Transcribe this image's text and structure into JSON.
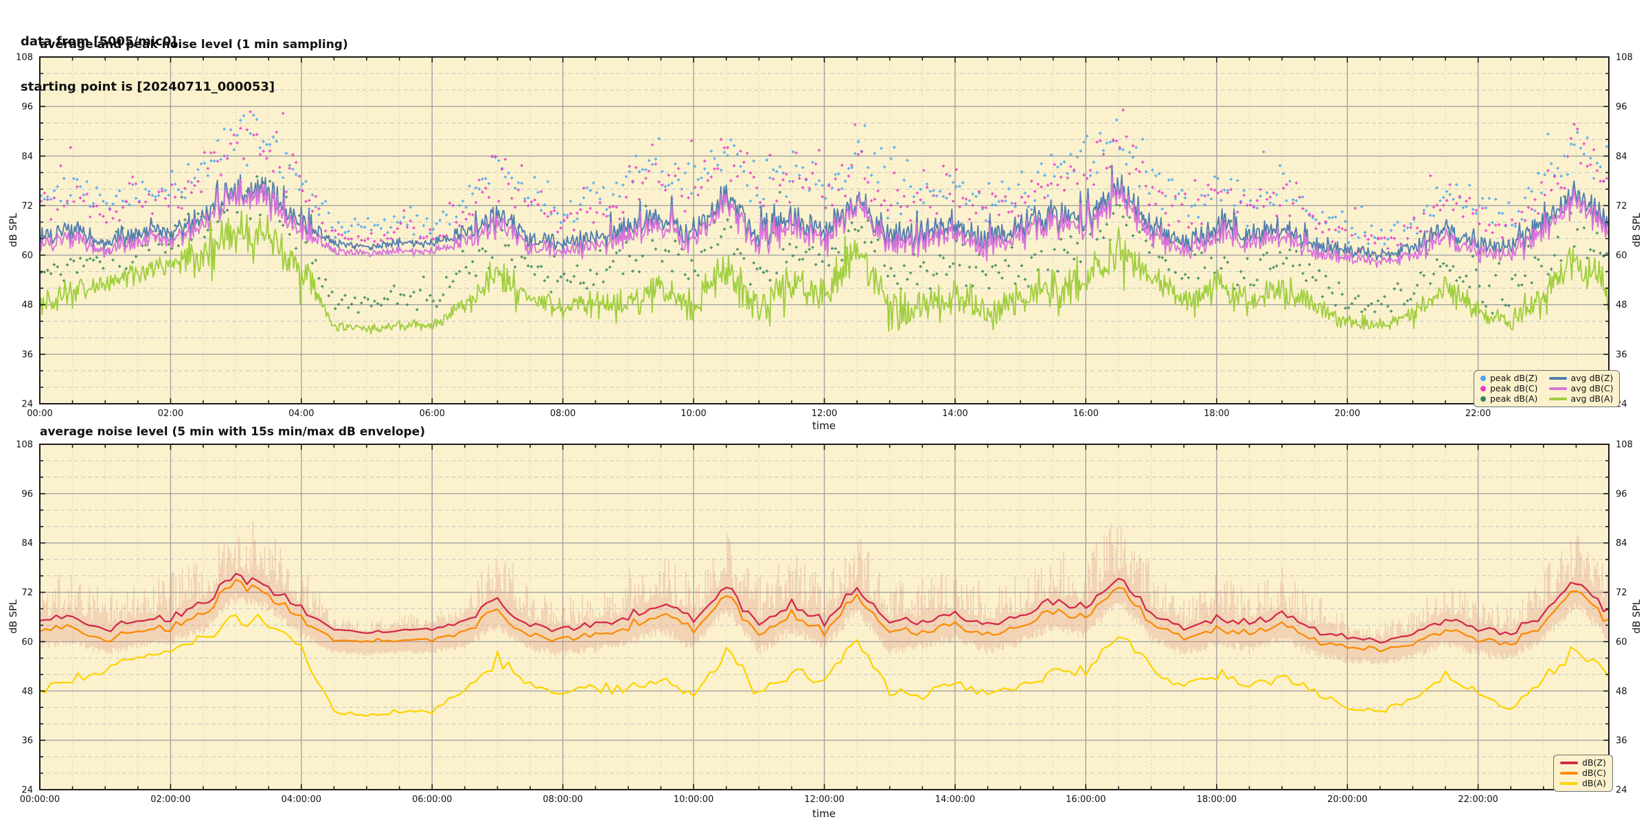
{
  "header": {
    "line1": "data from [5005/mic0]",
    "line2": "starting point is [20240711_000053]"
  },
  "figure": {
    "background": "#ffffff",
    "plot_background": "#fbf2cd",
    "grid_major_color": "#a3a3a3",
    "grid_minor_color": "#c7c7c7",
    "border_color": "#1a1a1a",
    "envelope_color": "#dd8474"
  },
  "chart_data": [
    {
      "type": "line+scatter",
      "title": "average and peak noise level (1 min sampling)",
      "xlabel": "time",
      "ylabel_left": "dB SPL",
      "ylabel_right": "dB SPL",
      "xlim_hours": [
        0,
        24
      ],
      "ylim": [
        24,
        108
      ],
      "x_tick_labels": [
        "00:00",
        "02:00",
        "04:00",
        "06:00",
        "08:00",
        "10:00",
        "12:00",
        "14:00",
        "16:00",
        "18:00",
        "20:00",
        "22:00"
      ],
      "y_tick_labels": [
        24,
        36,
        48,
        60,
        72,
        84,
        96,
        108
      ],
      "y_major_step": 12,
      "y_minor_step": 4,
      "x_major_step_hours": 2,
      "x_minor_step_hours": 0.5,
      "anchor_step_hours": 0.5,
      "activity": [
        0.55,
        0.5,
        0.4,
        0.45,
        0.5,
        0.7,
        0.9,
        0.9,
        0.75,
        0.12,
        0.08,
        0.15,
        0.12,
        0.45,
        0.8,
        0.5,
        0.4,
        0.5,
        0.7,
        0.9,
        0.8,
        0.9,
        0.85,
        0.9,
        0.8,
        0.8,
        0.75,
        0.8,
        0.7,
        0.7,
        0.7,
        0.85,
        0.8,
        0.95,
        0.7,
        0.5,
        0.75,
        0.6,
        0.7,
        0.5,
        0.3,
        0.2,
        0.4,
        0.65,
        0.5,
        0.4,
        0.7,
        0.9,
        0.7
      ],
      "series": [
        {
          "name": "avg dB(Z)",
          "type": "line",
          "color": "#527fae",
          "values": [
            65,
            66,
            63,
            65,
            66,
            69,
            76,
            74,
            68,
            63,
            62,
            63,
            63,
            65,
            70,
            64,
            63,
            64,
            66,
            69,
            65,
            74,
            64,
            69,
            65,
            73,
            64,
            65,
            67,
            64,
            66,
            70,
            68,
            76,
            67,
            63,
            66,
            64,
            67,
            63,
            61,
            60,
            62,
            66,
            63,
            62,
            67,
            75,
            67
          ]
        },
        {
          "name": "avg dB(C)",
          "type": "line",
          "color": "#d973d9",
          "values": [
            63,
            64,
            61,
            63,
            64,
            67,
            75,
            72.5,
            66,
            61,
            60.5,
            61,
            61,
            63,
            68,
            62,
            61,
            62,
            64,
            67,
            63,
            72.5,
            62,
            67,
            63,
            72,
            62,
            63,
            65,
            62,
            64,
            68,
            66,
            74.5,
            65,
            61,
            64,
            62,
            65,
            61,
            59,
            58.5,
            60,
            64,
            61,
            60,
            65,
            73.5,
            65
          ]
        },
        {
          "name": "avg dB(A)",
          "type": "line",
          "color": "#a0ce3e",
          "values": [
            48,
            51,
            53,
            56,
            58,
            61,
            66,
            64,
            58,
            43,
            42,
            43,
            43,
            48,
            56,
            50,
            47,
            49,
            48,
            52,
            47,
            57,
            47,
            53,
            50,
            61,
            48,
            47,
            50,
            47,
            49,
            53,
            53,
            62,
            54,
            49,
            52,
            49,
            52,
            48,
            44,
            43,
            46,
            52,
            47,
            44,
            51,
            58,
            52
          ]
        },
        {
          "name": "peak dB(Z)",
          "type": "scatter",
          "color": "#45a5f2",
          "values": [
            74,
            77,
            72,
            74,
            76,
            81,
            89,
            87,
            79,
            67,
            66,
            68,
            67,
            72,
            81,
            74,
            70,
            72,
            77,
            82,
            75,
            86,
            75,
            81,
            75,
            85,
            74,
            75,
            76,
            73,
            75,
            80,
            81,
            90,
            78,
            71,
            76,
            72,
            76,
            71,
            66,
            64,
            68,
            75,
            71,
            68,
            77,
            87,
            78
          ]
        },
        {
          "name": "peak dB(C)",
          "type": "scatter",
          "color": "#e838cb",
          "values": [
            72,
            75,
            70,
            72,
            74,
            79,
            87,
            85,
            77,
            65,
            64,
            66,
            65,
            70,
            79,
            72,
            68,
            70,
            75,
            80,
            73,
            84,
            73,
            79,
            73,
            83,
            72,
            73,
            74,
            71,
            73,
            78,
            79,
            88,
            76,
            69,
            74,
            70,
            74,
            69,
            64,
            62,
            66,
            73,
            69,
            66,
            75,
            85,
            76
          ]
        },
        {
          "name": "peak dB(A)",
          "type": "scatter",
          "color": "#35855c",
          "values": [
            56,
            59,
            59,
            62,
            64,
            68,
            74,
            72,
            64,
            49,
            48,
            50,
            49,
            55,
            64,
            57,
            54,
            56,
            58,
            62,
            56,
            67,
            56,
            61,
            57,
            69,
            56,
            55,
            59,
            55,
            57,
            62,
            62,
            71,
            60,
            55,
            58,
            55,
            59,
            54,
            49,
            47,
            51,
            58,
            52,
            49,
            57,
            66,
            58
          ]
        }
      ],
      "legend": {
        "position": "bottom-right",
        "scatter": [
          {
            "label": "peak dB(Z)",
            "color": "#45a5f2"
          },
          {
            "label": "peak dB(C)",
            "color": "#e838cb"
          },
          {
            "label": "peak dB(A)",
            "color": "#35855c"
          }
        ],
        "lines": [
          {
            "label": "avg dB(Z)",
            "color": "#527fae"
          },
          {
            "label": "avg dB(C)",
            "color": "#d973d9"
          },
          {
            "label": "avg dB(A)",
            "color": "#a0ce3e"
          }
        ]
      }
    },
    {
      "type": "line+envelope",
      "title": "average noise level (5 min with 15s min/max dB envelope)",
      "xlabel": "time",
      "ylabel_left": "dB SPL",
      "ylabel_right": "dB SPL",
      "xlim_hours": [
        0,
        24
      ],
      "ylim": [
        24,
        108
      ],
      "x_tick_labels": [
        "00:00:00",
        "02:00:00",
        "04:00:00",
        "06:00:00",
        "08:00:00",
        "10:00:00",
        "12:00:00",
        "14:00:00",
        "16:00:00",
        "18:00:00",
        "20:00:00",
        "22:00:00"
      ],
      "y_tick_labels": [
        24,
        36,
        48,
        60,
        72,
        84,
        96,
        108
      ],
      "y_major_step": 12,
      "y_minor_step": 4,
      "x_major_step_hours": 2,
      "x_minor_step_hours": 0.5,
      "anchor_step_hours": 0.5,
      "series": [
        {
          "name": "dB(Z)",
          "type": "line",
          "color": "#d2294b",
          "values": [
            65,
            66,
            63,
            65,
            66,
            69,
            76,
            74,
            68,
            63,
            62,
            63,
            63,
            65,
            70,
            64,
            63,
            64,
            66,
            69,
            65,
            74,
            64,
            69,
            65,
            73,
            64,
            65,
            67,
            64,
            66,
            70,
            68,
            76,
            67,
            63,
            66,
            64,
            67,
            63,
            61,
            60,
            62,
            66,
            63,
            62,
            67,
            75,
            67
          ]
        },
        {
          "name": "dB(C)",
          "type": "line",
          "color": "#fb8b04",
          "values": [
            62.5,
            63.5,
            60.5,
            62.5,
            63.5,
            66.5,
            74.5,
            72,
            65.5,
            60.5,
            60,
            60.5,
            60.5,
            62.5,
            67.5,
            61.5,
            60.5,
            61.5,
            63.5,
            66.5,
            62.5,
            72,
            61.5,
            66.5,
            62.5,
            71.5,
            61.5,
            62.5,
            64.5,
            61.5,
            63.5,
            67.5,
            65.5,
            74,
            64.5,
            60.5,
            63.5,
            61.5,
            64.5,
            60.5,
            58.5,
            58,
            59.5,
            63.5,
            60.5,
            59.5,
            64.5,
            73,
            64.5
          ]
        },
        {
          "name": "dB(A)",
          "type": "line",
          "color": "#fdd303",
          "values": [
            48,
            51,
            53,
            56,
            58,
            61,
            66,
            64,
            58,
            43,
            42,
            43,
            43,
            48,
            56,
            50,
            47,
            49,
            48,
            52,
            47,
            57,
            47,
            53,
            50,
            61,
            48,
            47,
            50,
            47,
            49,
            53,
            53,
            62,
            54,
            49,
            52,
            49,
            52,
            48,
            44,
            43,
            46,
            52,
            47,
            44,
            51,
            58,
            52
          ]
        },
        {
          "name": "15s max envelope",
          "type": "envelope-max",
          "color": "#dd8474",
          "values": [
            75,
            78,
            73,
            75,
            77,
            82,
            90,
            88,
            79,
            66,
            65,
            67,
            66,
            72,
            82,
            75,
            71,
            73,
            78,
            83,
            76,
            87,
            76,
            82,
            76,
            86,
            75,
            76,
            77,
            74,
            76,
            82,
            82,
            92,
            79,
            72,
            77,
            73,
            78,
            72,
            66,
            64,
            68,
            76,
            72,
            68,
            78,
            88,
            79
          ]
        },
        {
          "name": "15s min envelope",
          "type": "envelope-min",
          "color": "#dd8474",
          "values": [
            60,
            61,
            58,
            60,
            61,
            64,
            72,
            69.5,
            63,
            58,
            57.5,
            58,
            58,
            60,
            65,
            59,
            58,
            59,
            61,
            64,
            60,
            69.5,
            59,
            64,
            60,
            69,
            59,
            60,
            62,
            59,
            61,
            65,
            63,
            71.5,
            62,
            58,
            61,
            59,
            62,
            58,
            56,
            55.5,
            57,
            61,
            58,
            57,
            62,
            70.5,
            62
          ]
        }
      ],
      "legend": {
        "position": "bottom-right",
        "lines": [
          {
            "label": "dB(Z)",
            "color": "#d2294b"
          },
          {
            "label": "dB(C)",
            "color": "#fb8b04"
          },
          {
            "label": "dB(A)",
            "color": "#fdd303"
          }
        ]
      }
    }
  ]
}
